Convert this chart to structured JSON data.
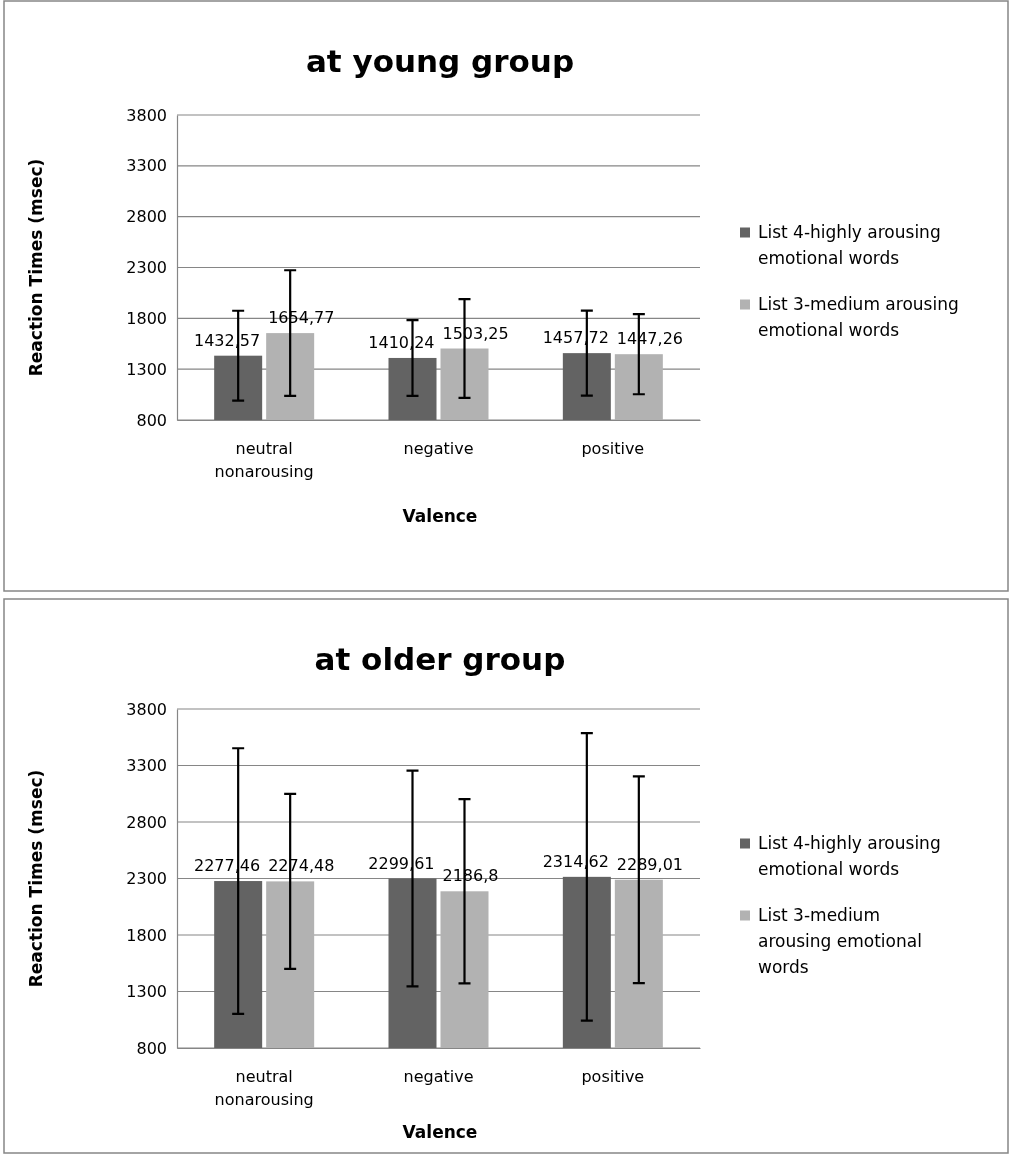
{
  "chart_data": [
    {
      "type": "bar",
      "title": "at young group",
      "xlabel": "Valence",
      "ylabel": "Reaction Times (msec)",
      "categories": [
        "neutral nonarousing",
        "negative",
        "positive"
      ],
      "series": [
        {
          "name": "List 4-highly arousing emotional words",
          "color": "#636363",
          "values": [
            1432.57,
            1410.24,
            1457.72
          ],
          "errors": [
            442,
            373,
            418
          ],
          "value_labels": [
            "1432,57",
            "1410,24",
            "1457,72"
          ]
        },
        {
          "name": "List 3-medium arousing emotional words",
          "color": "#b2b2b2",
          "values": [
            1654.77,
            1503.25,
            1447.26
          ],
          "errors": [
            618,
            486,
            394
          ],
          "value_labels": [
            "1654,77",
            "1503,25",
            "1447,26"
          ]
        }
      ],
      "ylim": [
        800,
        3800
      ],
      "yticks": [
        800,
        1300,
        1800,
        2300,
        2800,
        3300,
        3800
      ],
      "grid": "y",
      "legend": "right"
    },
    {
      "type": "bar",
      "title": "at older group",
      "xlabel": "Valence",
      "ylabel": "Reaction Times (msec)",
      "categories": [
        "neutral nonarousing",
        "negative",
        "positive"
      ],
      "series": [
        {
          "name": "List 4-highly arousing emotional words",
          "color": "#636363",
          "values": [
            2277.46,
            2299.61,
            2314.62
          ],
          "errors": [
            1175,
            955,
            1272
          ],
          "value_labels": [
            "2277,46",
            "2299,61",
            "2314,62"
          ]
        },
        {
          "name": "List 3-medium arousing emotional words",
          "color": "#b2b2b2",
          "values": [
            2274.48,
            2186.8,
            2289.01
          ],
          "errors": [
            775,
            815,
            915
          ],
          "value_labels": [
            "2274,48",
            "2186,8",
            "2289,01"
          ]
        }
      ],
      "ylim": [
        800,
        3800
      ],
      "yticks": [
        800,
        1300,
        1800,
        2300,
        2800,
        3300,
        3800
      ],
      "grid": "y",
      "legend": "right"
    }
  ]
}
